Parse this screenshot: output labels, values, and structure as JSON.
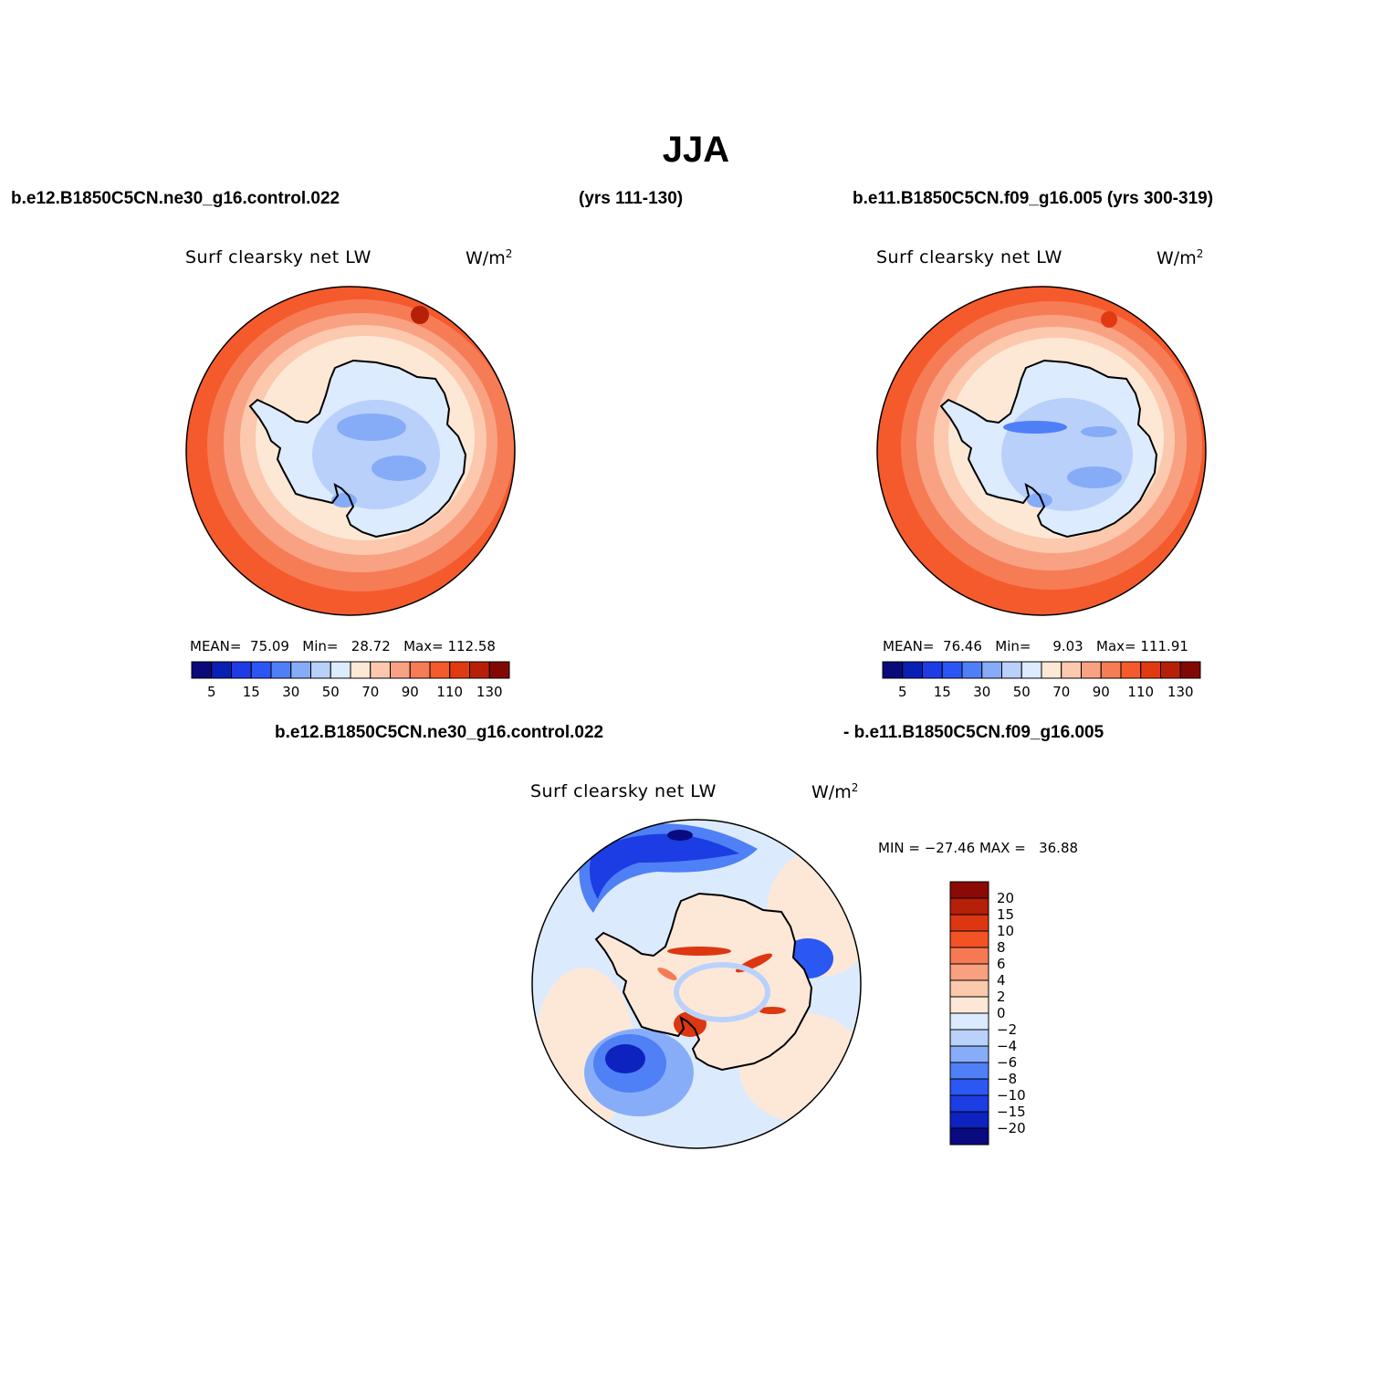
{
  "title": "JJA",
  "case1": "b.e12.B1850C5CN.ne30_g16.control.022",
  "case1_years": "(yrs 111-130)",
  "case2_header": "b.e11.B1850C5CN.f09_g16.005 (yrs 300-319)",
  "diff_case1": "b.e12.B1850C5CN.ne30_g16.control.022",
  "diff_case2": "- b.e11.B1850C5CN.f09_g16.005",
  "panels": [
    {
      "variable": "Surf clearsky net LW",
      "units_base": "W/m",
      "units_exp": "2",
      "stats": {
        "mean_label": "MEAN=",
        "mean": "75.09",
        "min_label": "Min=",
        "min": "28.72",
        "max_label": "Max=",
        "max": "112.58"
      }
    },
    {
      "variable": "Surf clearsky net LW",
      "units_base": "W/m",
      "units_exp": "2",
      "stats": {
        "mean_label": "MEAN=",
        "mean": "76.46",
        "min_label": "Min=",
        "min": "9.03",
        "max_label": "Max=",
        "max": "111.91"
      }
    },
    {
      "variable": "Surf clearsky net LW",
      "units_base": "W/m",
      "units_exp": "2",
      "stats": {
        "minmax_text": "MIN = −27.46 MAX =   36.88"
      }
    }
  ],
  "abs_colorbar": {
    "colors": [
      "#0a0a7a",
      "#0a1fb4",
      "#1e3be6",
      "#2b55f5",
      "#4f7ff7",
      "#86acf8",
      "#b9d0fb",
      "#dcebfd",
      "#fde8d6",
      "#fcc9ae",
      "#f9a283",
      "#f67c56",
      "#f55a2c",
      "#e23a10",
      "#b72008",
      "#810805"
    ],
    "tick_labels": [
      "5",
      "15",
      "30",
      "50",
      "70",
      "90",
      "110",
      "130"
    ]
  },
  "diff_colorbar": {
    "colors_top_to_bottom": [
      "#8b0a06",
      "#b61f08",
      "#dc3710",
      "#f35224",
      "#f57a54",
      "#f8a07f",
      "#fbc9ac",
      "#fde8d8",
      "#dbebfd",
      "#bad2fb",
      "#88adf8",
      "#4f80f6",
      "#2b57f3",
      "#1b3de3",
      "#0d22bf",
      "#0a0a80"
    ],
    "tick_labels": [
      "20",
      "15",
      "10",
      "8",
      "6",
      "4",
      "2",
      "0",
      "−2",
      "−4",
      "−6",
      "−8",
      "−10",
      "−15",
      "−20"
    ]
  },
  "map_colors": {
    "ocean_warm": "#f55a2c",
    "ocean_mid": "#f67c56",
    "ice_edge": "#fcc9ae",
    "sea_ice": "#fde8d6",
    "coast_ice": "#dcebfd",
    "plateau": "#b9d0fb",
    "plateau_low": "#86acf8",
    "coastline": "#000000"
  }
}
